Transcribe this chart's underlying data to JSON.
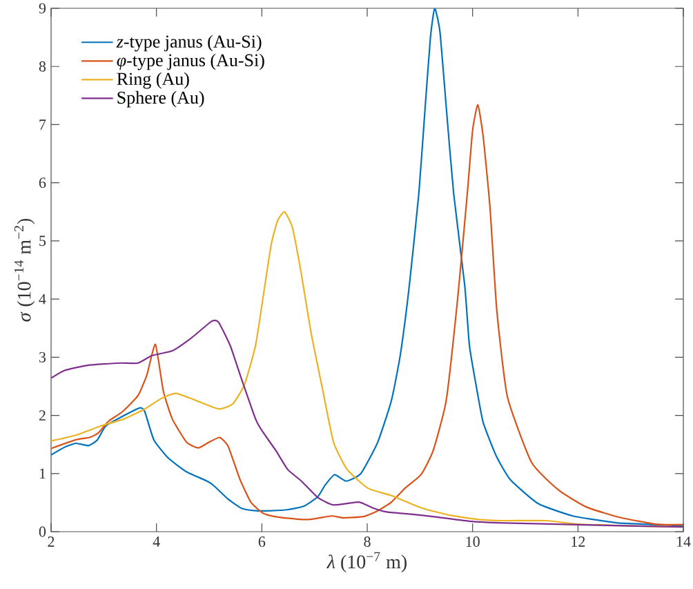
{
  "chart_data": {
    "type": "line",
    "xlabel": "*λ* (10$^{−7}$ m)",
    "ylabel": "*σ* (10$^{−14}$ m$^{−2}$)",
    "xlim": [
      2,
      14
    ],
    "xticks": [
      2,
      4,
      6,
      8,
      10,
      12,
      14
    ],
    "ylim": [
      0,
      9
    ],
    "yticks": [
      0,
      1,
      2,
      3,
      4,
      5,
      6,
      7,
      8,
      9
    ],
    "legend": "top left",
    "series": [
      {
        "name": "*z*-type janus (Au-Si)",
        "color": "#0072bd",
        "x": [
          2.0,
          2.25,
          2.47,
          2.71,
          2.88,
          3.04,
          3.39,
          3.69,
          3.78,
          3.95,
          4.22,
          4.57,
          4.96,
          5.09,
          5.36,
          5.62,
          5.88,
          6.18,
          6.5,
          6.8,
          7.06,
          7.2,
          7.38,
          7.6,
          7.88,
          8.2,
          8.46,
          8.63,
          8.8,
          8.98,
          9.1,
          9.2,
          9.28,
          9.38,
          9.5,
          9.64,
          9.85,
          9.94,
          10.07,
          10.2,
          10.45,
          10.72,
          11.25,
          11.9,
          12.3,
          12.76,
          13.5,
          14
        ],
        "values": [
          1.32,
          1.45,
          1.52,
          1.48,
          1.58,
          1.82,
          2.0,
          2.13,
          2.06,
          1.58,
          1.27,
          1.03,
          0.87,
          0.79,
          0.56,
          0.4,
          0.36,
          0.36,
          0.38,
          0.44,
          0.6,
          0.8,
          0.98,
          0.87,
          1.0,
          1.54,
          2.26,
          3.05,
          4.24,
          5.82,
          7.3,
          8.5,
          9.0,
          8.6,
          7.3,
          5.82,
          4.24,
          3.2,
          2.5,
          1.88,
          1.3,
          0.89,
          0.48,
          0.27,
          0.21,
          0.15,
          0.12,
          0.1
        ]
      },
      {
        "name": "*φ*-type janus (Au-Si)",
        "color": "#d95319",
        "x": [
          2.0,
          2.47,
          2.73,
          2.9,
          3.09,
          3.35,
          3.65,
          3.82,
          3.98,
          4.13,
          4.3,
          4.57,
          4.79,
          5.0,
          5.2,
          5.36,
          5.58,
          5.79,
          6.0,
          6.14,
          6.4,
          6.89,
          7.32,
          7.54,
          7.93,
          8.2,
          8.46,
          8.72,
          9.02,
          9.25,
          9.5,
          9.72,
          9.9,
          10.0,
          10.1,
          10.2,
          10.33,
          10.46,
          10.66,
          11.12,
          11.64,
          12.17,
          12.82,
          13.48,
          14
        ],
        "values": [
          1.43,
          1.58,
          1.62,
          1.7,
          1.9,
          2.06,
          2.34,
          2.7,
          3.22,
          2.42,
          1.94,
          1.54,
          1.44,
          1.54,
          1.62,
          1.47,
          0.91,
          0.51,
          0.33,
          0.28,
          0.24,
          0.21,
          0.27,
          0.24,
          0.26,
          0.36,
          0.51,
          0.75,
          0.98,
          1.39,
          2.26,
          4.04,
          5.82,
          6.9,
          7.34,
          6.8,
          5.58,
          3.8,
          2.32,
          1.19,
          0.71,
          0.42,
          0.24,
          0.13,
          0.12
        ]
      },
      {
        "name": "Ring (Au)",
        "color": "#edb120",
        "x": [
          2.0,
          2.47,
          2.95,
          3.39,
          3.78,
          4.09,
          4.37,
          4.74,
          5.18,
          5.45,
          5.67,
          5.88,
          6.05,
          6.18,
          6.3,
          6.43,
          6.58,
          6.75,
          6.93,
          7.15,
          7.36,
          7.62,
          8.01,
          8.46,
          9.06,
          9.59,
          10.11,
          10.6,
          11.4,
          12.0,
          13.0,
          14
        ],
        "values": [
          1.56,
          1.66,
          1.82,
          1.94,
          2.11,
          2.29,
          2.38,
          2.26,
          2.11,
          2.2,
          2.53,
          3.2,
          4.19,
          4.95,
          5.35,
          5.5,
          5.23,
          4.43,
          3.44,
          2.46,
          1.54,
          1.07,
          0.75,
          0.62,
          0.4,
          0.28,
          0.21,
          0.19,
          0.19,
          0.13,
          0.1,
          0.08
        ]
      },
      {
        "name": "Sphere (Au)",
        "color": "#7e2f8e",
        "x": [
          2.0,
          2.25,
          2.69,
          3.3,
          3.65,
          3.92,
          4.3,
          4.66,
          5.05,
          5.18,
          5.4,
          5.62,
          5.88,
          6.0,
          6.27,
          6.49,
          6.75,
          7.06,
          7.36,
          7.84,
          8.1,
          8.37,
          9.06,
          9.94,
          10.6,
          12.0,
          14
        ],
        "values": [
          2.64,
          2.77,
          2.86,
          2.9,
          2.9,
          3.03,
          3.11,
          3.33,
          3.62,
          3.6,
          3.2,
          2.61,
          1.94,
          1.74,
          1.39,
          1.07,
          0.87,
          0.59,
          0.46,
          0.51,
          0.41,
          0.34,
          0.28,
          0.18,
          0.15,
          0.12,
          0.08
        ]
      }
    ]
  }
}
